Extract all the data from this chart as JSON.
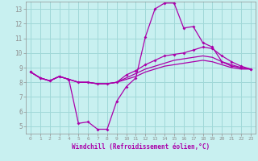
{
  "title": "",
  "xlabel": "Windchill (Refroidissement éolien,°C)",
  "ylabel": "",
  "background_color": "#c8f0f0",
  "grid_color": "#a0d8d8",
  "line_color": "#aa00aa",
  "xlim": [
    -0.5,
    23.5
  ],
  "ylim": [
    4.5,
    13.5
  ],
  "yticks": [
    5,
    6,
    7,
    8,
    9,
    10,
    11,
    12,
    13
  ],
  "xticks": [
    0,
    1,
    2,
    3,
    4,
    5,
    6,
    7,
    8,
    9,
    10,
    11,
    12,
    13,
    14,
    15,
    16,
    17,
    18,
    19,
    20,
    21,
    22,
    23
  ],
  "series": [
    {
      "x": [
        0,
        1,
        2,
        3,
        4,
        5,
        6,
        7,
        8,
        9,
        10,
        11,
        12,
        13,
        14,
        15,
        16,
        17,
        18,
        19,
        20,
        21,
        22,
        23
      ],
      "y": [
        8.7,
        8.3,
        8.1,
        8.4,
        8.2,
        5.2,
        5.3,
        4.8,
        4.8,
        6.7,
        7.7,
        8.3,
        11.1,
        13.0,
        13.4,
        13.4,
        11.7,
        11.8,
        10.7,
        10.4,
        9.4,
        9.1,
        9.0,
        8.9
      ],
      "marker": true
    },
    {
      "x": [
        0,
        1,
        2,
        3,
        4,
        5,
        6,
        7,
        8,
        9,
        10,
        11,
        12,
        13,
        14,
        15,
        16,
        17,
        18,
        19,
        20,
        21,
        22,
        23
      ],
      "y": [
        8.7,
        8.3,
        8.1,
        8.4,
        8.2,
        8.0,
        8.0,
        7.9,
        7.9,
        8.0,
        8.5,
        8.8,
        9.2,
        9.5,
        9.8,
        9.9,
        10.0,
        10.2,
        10.4,
        10.3,
        9.8,
        9.4,
        9.1,
        8.9
      ],
      "marker": true
    },
    {
      "x": [
        0,
        1,
        2,
        3,
        4,
        5,
        6,
        7,
        8,
        9,
        10,
        11,
        12,
        13,
        14,
        15,
        16,
        17,
        18,
        19,
        20,
        21,
        22,
        23
      ],
      "y": [
        8.7,
        8.3,
        8.1,
        8.4,
        8.2,
        8.0,
        8.0,
        7.9,
        7.9,
        8.0,
        8.3,
        8.6,
        8.9,
        9.1,
        9.3,
        9.5,
        9.6,
        9.7,
        9.8,
        9.7,
        9.4,
        9.2,
        9.0,
        8.9
      ],
      "marker": false
    },
    {
      "x": [
        0,
        1,
        2,
        3,
        4,
        5,
        6,
        7,
        8,
        9,
        10,
        11,
        12,
        13,
        14,
        15,
        16,
        17,
        18,
        19,
        20,
        21,
        22,
        23
      ],
      "y": [
        8.7,
        8.3,
        8.1,
        8.4,
        8.2,
        8.0,
        8.0,
        7.9,
        7.9,
        8.0,
        8.2,
        8.4,
        8.7,
        8.9,
        9.1,
        9.2,
        9.3,
        9.4,
        9.5,
        9.4,
        9.2,
        9.0,
        8.9,
        8.9
      ],
      "marker": false
    }
  ]
}
